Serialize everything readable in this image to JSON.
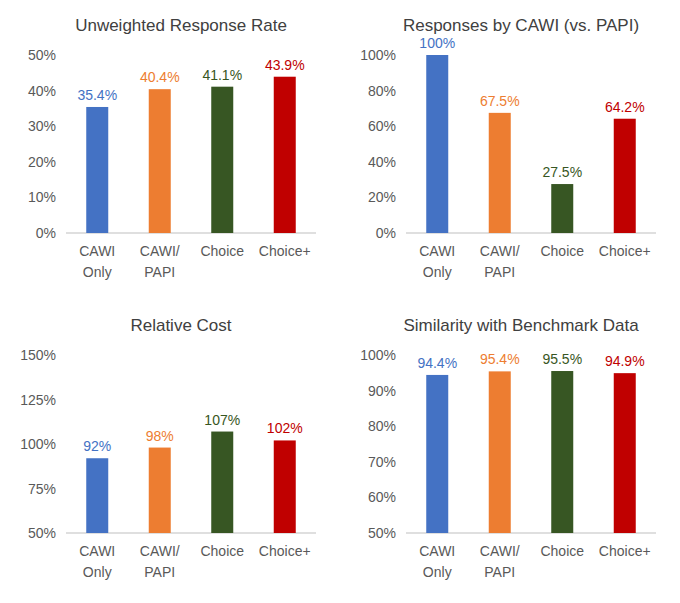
{
  "chart_data": [
    {
      "type": "bar",
      "title": "Unweighted Response Rate",
      "categories": [
        "CAWI Only",
        "CAWI/PAPI",
        "Choice",
        "Choice+"
      ],
      "values": [
        35.4,
        40.4,
        41.1,
        43.9
      ],
      "value_labels": [
        "35.4%",
        "40.4%",
        "41.1%",
        "43.9%"
      ],
      "colors": [
        "#4472c4",
        "#ed7d31",
        "#375623",
        "#c00000"
      ],
      "ylim": [
        0,
        50
      ],
      "yticks": [
        {
          "value": 0,
          "label": "0%"
        },
        {
          "value": 10,
          "label": "10%"
        },
        {
          "value": 20,
          "label": "20%"
        },
        {
          "value": 30,
          "label": "30%"
        },
        {
          "value": 40,
          "label": "40%"
        },
        {
          "value": 50,
          "label": "50%"
        }
      ],
      "grid": false,
      "data_labels": true
    },
    {
      "type": "bar",
      "title": "Responses by CAWI (vs. PAPI)",
      "categories": [
        "CAWI Only",
        "CAWI/PAPI",
        "Choice",
        "Choice+"
      ],
      "values": [
        100,
        67.5,
        27.5,
        64.2
      ],
      "value_labels": [
        "100%",
        "67.5%",
        "27.5%",
        "64.2%"
      ],
      "colors": [
        "#4472c4",
        "#ed7d31",
        "#375623",
        "#c00000"
      ],
      "ylim": [
        0,
        100
      ],
      "yticks": [
        {
          "value": 0,
          "label": "0%"
        },
        {
          "value": 20,
          "label": "20%"
        },
        {
          "value": 40,
          "label": "40%"
        },
        {
          "value": 60,
          "label": "60%"
        },
        {
          "value": 80,
          "label": "80%"
        },
        {
          "value": 100,
          "label": "100%"
        }
      ],
      "grid": false,
      "data_labels": true
    },
    {
      "type": "bar",
      "title": "Relative Cost",
      "categories": [
        "CAWI Only",
        "CAWI/PAPI",
        "Choice",
        "Choice+"
      ],
      "values": [
        92,
        98,
        107,
        102
      ],
      "value_labels": [
        "92%",
        "98%",
        "107%",
        "102%"
      ],
      "colors": [
        "#4472c4",
        "#ed7d31",
        "#375623",
        "#c00000"
      ],
      "ylim": [
        50,
        150
      ],
      "yticks": [
        {
          "value": 50,
          "label": "50%"
        },
        {
          "value": 75,
          "label": "75%"
        },
        {
          "value": 100,
          "label": "100%"
        },
        {
          "value": 125,
          "label": "125%"
        },
        {
          "value": 150,
          "label": "150%"
        }
      ],
      "grid": false,
      "data_labels": true
    },
    {
      "type": "bar",
      "title": "Similarity with Benchmark Data",
      "categories": [
        "CAWI Only",
        "CAWI/PAPI",
        "Choice",
        "Choice+"
      ],
      "values": [
        94.4,
        95.4,
        95.5,
        94.9
      ],
      "value_labels": [
        "94.4%",
        "95.4%",
        "95.5%",
        "94.9%"
      ],
      "colors": [
        "#4472c4",
        "#ed7d31",
        "#375623",
        "#c00000"
      ],
      "ylim": [
        50,
        100
      ],
      "yticks": [
        {
          "value": 50,
          "label": "50%"
        },
        {
          "value": 60,
          "label": "60%"
        },
        {
          "value": 70,
          "label": "70%"
        },
        {
          "value": 80,
          "label": "80%"
        },
        {
          "value": 90,
          "label": "90%"
        },
        {
          "value": 100,
          "label": "100%"
        }
      ],
      "grid": false,
      "data_labels": true
    }
  ]
}
